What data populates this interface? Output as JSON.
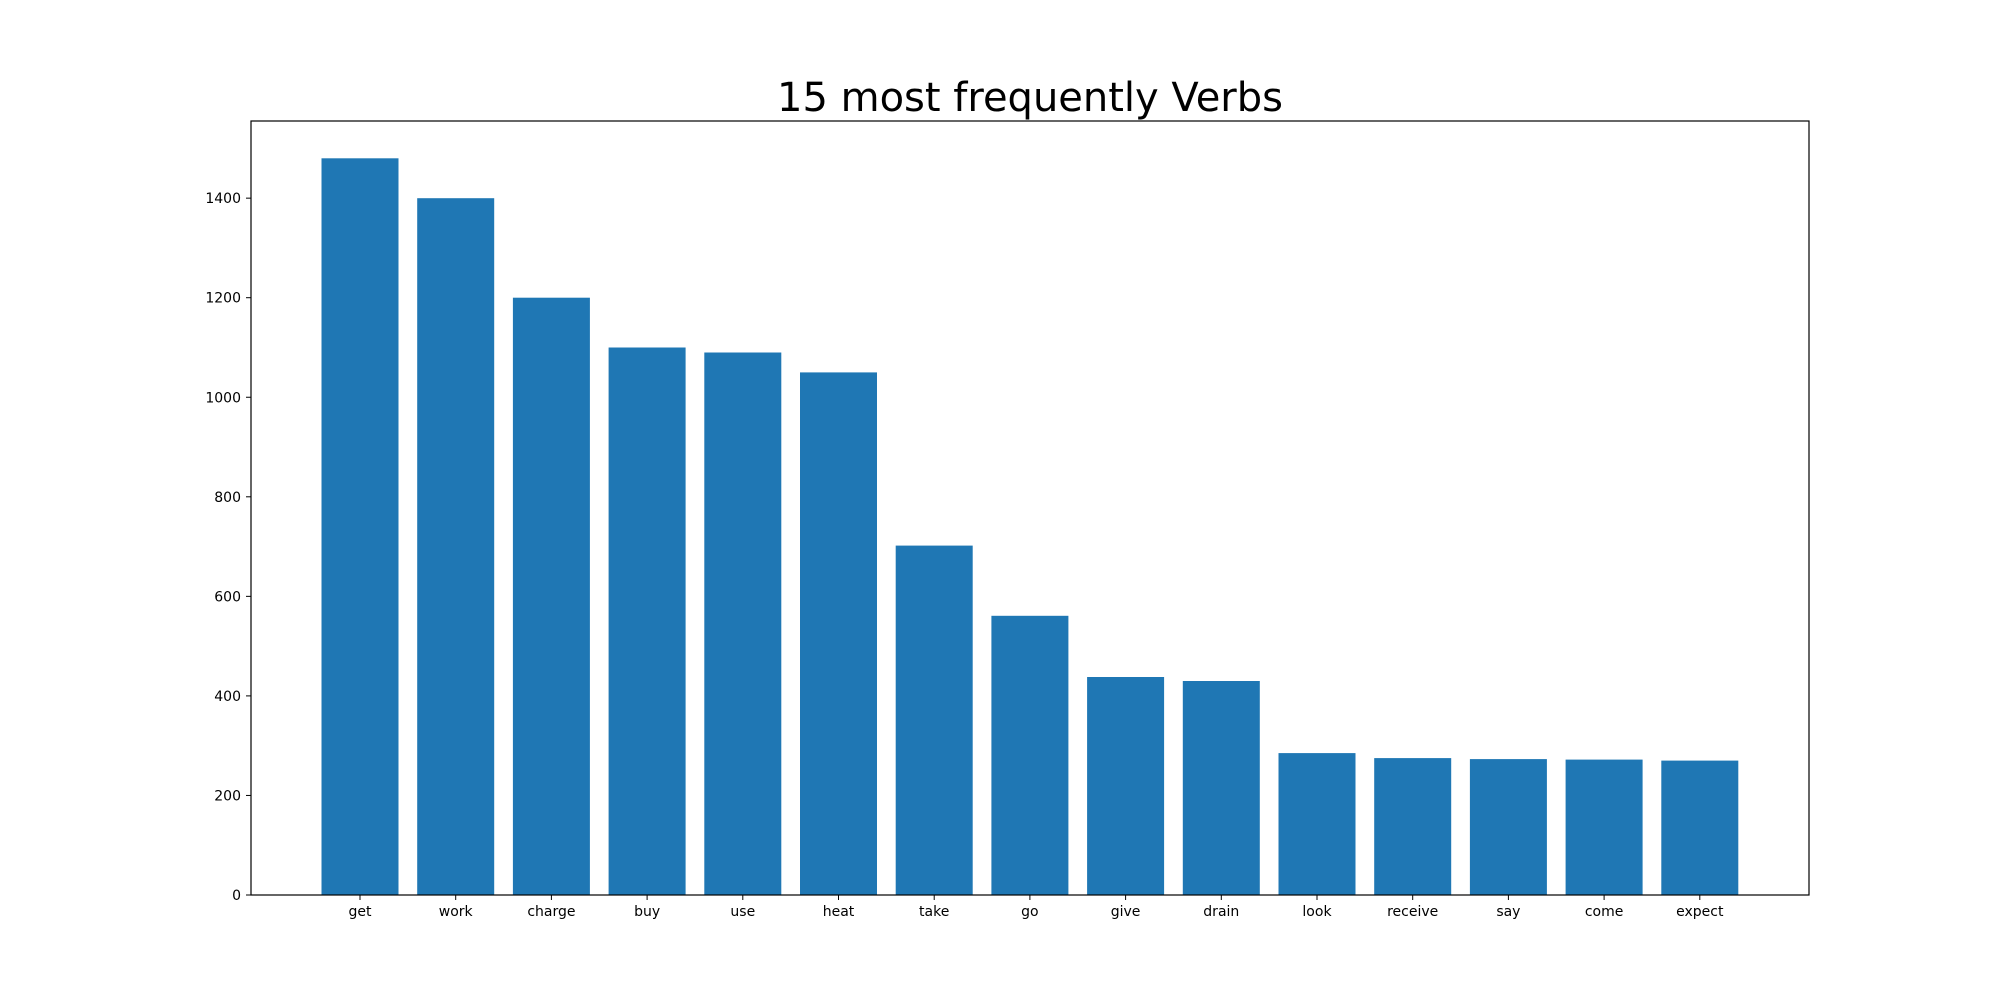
{
  "chart_data": {
    "type": "bar",
    "title": "15 most frequently Verbs",
    "xlabel": "",
    "ylabel": "",
    "categories": [
      "get",
      "work",
      "charge",
      "buy",
      "use",
      "heat",
      "take",
      "go",
      "give",
      "drain",
      "look",
      "receive",
      "say",
      "come",
      "expect"
    ],
    "values": [
      1480,
      1400,
      1200,
      1100,
      1090,
      1050,
      702,
      561,
      438,
      430,
      285,
      275,
      273,
      272,
      270
    ],
    "ylim": [
      0,
      1555
    ],
    "yticks": [
      "0",
      "200",
      "400",
      "600",
      "800",
      "1000",
      "1200",
      "1400"
    ],
    "grid": false,
    "bar_color": "#1f77b4"
  }
}
